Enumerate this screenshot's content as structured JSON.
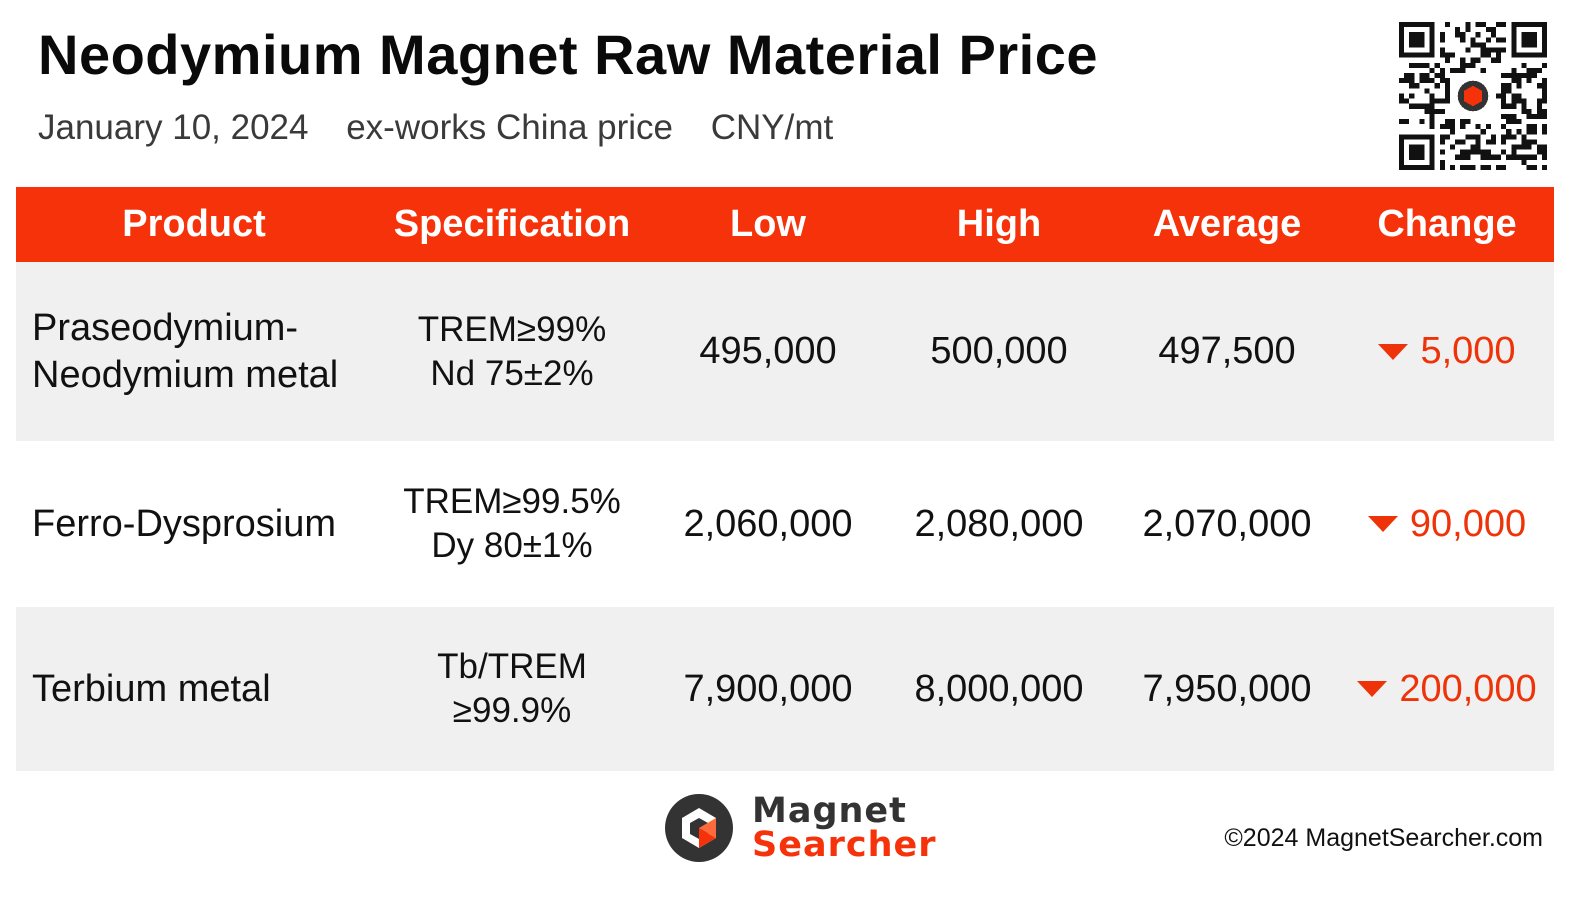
{
  "header": {
    "title": "Neodymium Magnet Raw Material Price",
    "date": "January 10, 2024",
    "basis": "ex-works China price",
    "unit": "CNY/mt"
  },
  "qr_code": {
    "icon": "qr-code-icon"
  },
  "table": {
    "columns": [
      "Product",
      "Specification",
      "Low",
      "High",
      "Average",
      "Change"
    ],
    "rows": [
      {
        "product": [
          "Praseodymium-",
          "Neodymium metal"
        ],
        "spec": [
          "TREM≥99%",
          "Nd 75±2%"
        ],
        "low": "495,000",
        "high": "500,000",
        "average": "497,500",
        "change": "5,000",
        "change_direction": "down"
      },
      {
        "product": [
          "Ferro-Dysprosium"
        ],
        "spec": [
          "TREM≥99.5%",
          "Dy 80±1%"
        ],
        "low": "2,060,000",
        "high": "2,080,000",
        "average": "2,070,000",
        "change": "90,000",
        "change_direction": "down"
      },
      {
        "product": [
          "Terbium metal"
        ],
        "spec": [
          "Tb/TREM",
          "≥99.9%"
        ],
        "low": "7,900,000",
        "high": "8,000,000",
        "average": "7,950,000",
        "change": "200,000",
        "change_direction": "down"
      }
    ]
  },
  "footer": {
    "logo_word1": "Magnet",
    "logo_word2": "Searcher",
    "copyright": "©2024 MagnetSearcher.com"
  },
  "colors": {
    "accent": "#f5320a",
    "down": "#ee3308",
    "row_alt": "#f0f0f0"
  }
}
